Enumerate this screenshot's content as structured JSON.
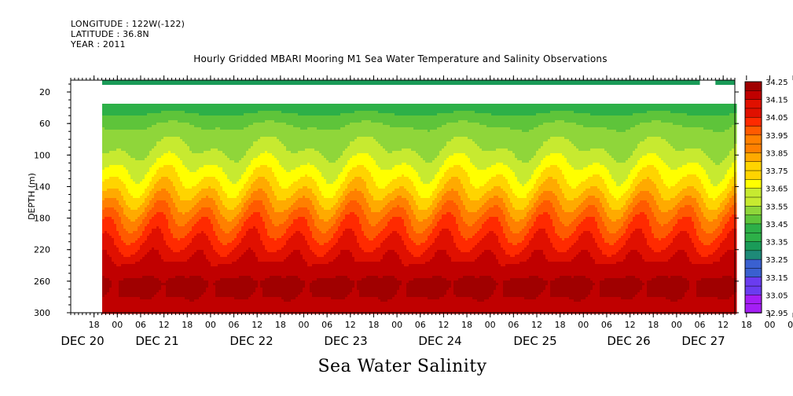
{
  "header": {
    "longitude": "LONGITUDE : 122W(-122)",
    "latitude": "LATITUDE : 36.8N",
    "year": "YEAR : 2011",
    "title": "Hourly Gridded MBARI Mooring M1 Sea Water Temperature and Salinity Observations"
  },
  "footer": {
    "variable_label": "Sea Water Salinity"
  },
  "colors": {
    "palette": [
      "#cc00ff",
      "#8a2be2",
      "#6a3cf0",
      "#4b52e0",
      "#2e6fb8",
      "#1e8a78",
      "#1a9b58",
      "#2db048",
      "#5ec43a",
      "#8fd63a",
      "#c7ea30",
      "#ffff00",
      "#ffd400",
      "#ffaa00",
      "#ff8000",
      "#ff5a00",
      "#ff2a00",
      "#e01000",
      "#c00000",
      "#a00000"
    ]
  },
  "chart_data": {
    "type": "heatmap",
    "title": "Hourly Gridded MBARI Mooring M1 Sea Water Temperature and Salinity Observations",
    "xlabel": "",
    "ylabel": "DEPTH (m)",
    "variable": "Sea Water Salinity",
    "y_ticks": [
      20,
      60,
      100,
      140,
      180,
      220,
      260,
      300
    ],
    "y_range": [
      300,
      5
    ],
    "x_hour_ticks": [
      "18",
      "00",
      "06",
      "12",
      "18",
      "00",
      "06",
      "12",
      "18",
      "00",
      "06",
      "12",
      "18",
      "00",
      "06",
      "12",
      "18",
      "00",
      "06",
      "12",
      "18",
      "00",
      "06",
      "12",
      "18",
      "00",
      "06",
      "12",
      "18",
      "00",
      "06",
      "12"
    ],
    "x_day_labels": [
      "DEC 20",
      "DEC 21",
      "DEC 22",
      "DEC 23",
      "DEC 24",
      "DEC 25",
      "DEC 26",
      "DEC 27"
    ],
    "time_range": [
      "2011-12-20 12:00",
      "2011-12-27 15:00"
    ],
    "data_start": "2011-12-20 20:00",
    "colorbar_levels": [
      34.25,
      34.2,
      34.15,
      34.1,
      34.05,
      34.0,
      33.95,
      33.9,
      33.85,
      33.8,
      33.75,
      33.7,
      33.65,
      33.6,
      33.55,
      33.5,
      33.45,
      33.4,
      33.35,
      33.3,
      33.25,
      33.2,
      33.15,
      33.1,
      33.05,
      33.0,
      32.95
    ],
    "colorbar_labels": [
      "34.25",
      "34.15",
      "34.05",
      "33.95",
      "33.85",
      "33.75",
      "33.65",
      "33.55",
      "33.45",
      "33.35",
      "33.25",
      "33.15",
      "33.05",
      "32.95"
    ],
    "profile_description": {
      "surface_band_value": 33.3,
      "no_data_depth_range": [
        10,
        35
      ],
      "depth_salinity_profile": [
        {
          "depth": 40,
          "salinity": 33.4
        },
        {
          "depth": 60,
          "salinity": 33.5
        },
        {
          "depth": 100,
          "salinity": 33.6
        },
        {
          "depth": 140,
          "salinity": 33.75
        },
        {
          "depth": 180,
          "salinity": 33.95
        },
        {
          "depth": 220,
          "salinity": 34.1
        },
        {
          "depth": 260,
          "salinity": 34.22
        },
        {
          "depth": 300,
          "salinity": 34.2
        }
      ]
    }
  }
}
